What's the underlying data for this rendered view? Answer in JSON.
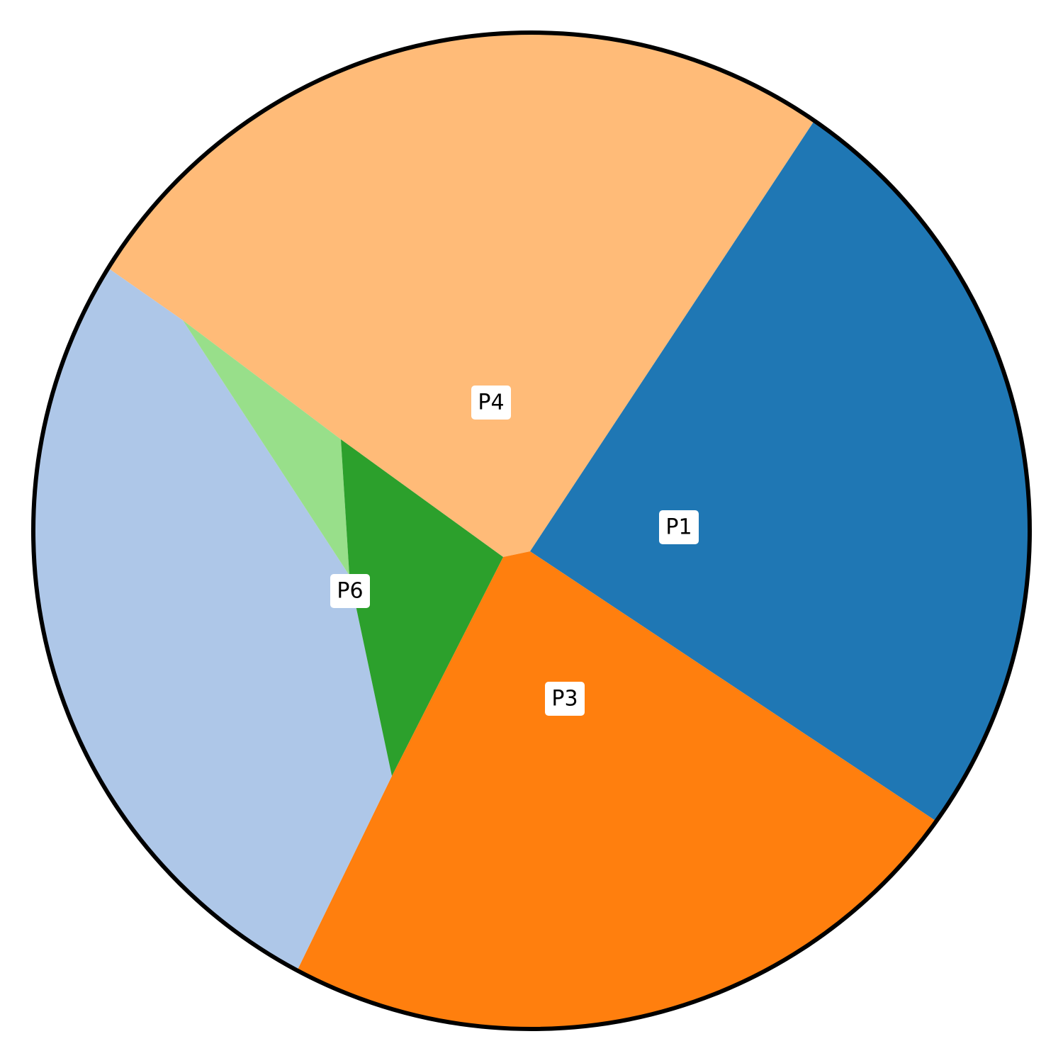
{
  "diagram": {
    "type": "voronoi-disk-partition",
    "border_color": "#000000",
    "background": "#ffffff",
    "regions": [
      {
        "id": "P1",
        "label": "P1",
        "color": "#1f77b4"
      },
      {
        "id": "P2",
        "label": "",
        "color": "#aec7e8"
      },
      {
        "id": "P3",
        "label": "P3",
        "color": "#ff7f0e"
      },
      {
        "id": "P4",
        "label": "P4",
        "color": "#ffbb78"
      },
      {
        "id": "P5",
        "label": "",
        "color": "#2ca02c"
      },
      {
        "id": "P6",
        "label": "P6",
        "color": "#98df8a"
      }
    ]
  }
}
